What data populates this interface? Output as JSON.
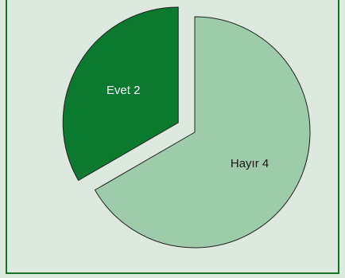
{
  "chart_data": {
    "type": "pie",
    "categories": [
      "Evet",
      "Hayır"
    ],
    "values": [
      2,
      4
    ],
    "colors": [
      "#0b7a2e",
      "#9ecbaa"
    ],
    "label_colors": [
      "#ffffff",
      "#1a1a1a"
    ]
  }
}
